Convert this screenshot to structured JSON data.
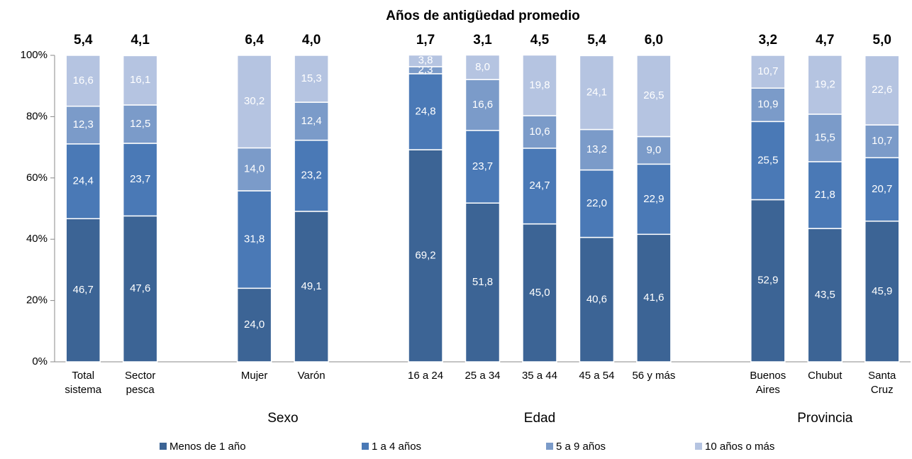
{
  "chart_data": {
    "type": "stacked_bar",
    "title": "Años de antigüedad promedio",
    "categories": [
      "Total sistema",
      "Sector pesca",
      null,
      "Mujer",
      "Varón",
      null,
      "16 a 24",
      "25 a 34",
      "35 a 44",
      "45 a 54",
      "56 y más",
      null,
      "Buenos Aires",
      "Chubut",
      "Santa Cruz"
    ],
    "groups": [
      {
        "name": "Sexo",
        "categories": [
          "Mujer",
          "Varón"
        ]
      },
      {
        "name": "Edad",
        "categories": [
          "16 a 24",
          "25 a 34",
          "35 a 44",
          "45 a 54",
          "56 y más"
        ]
      },
      {
        "name": "Provincia",
        "categories": [
          "Buenos Aires",
          "Chubut",
          "Santa Cruz"
        ]
      }
    ],
    "averages": {
      "values": [
        5.4,
        4.1,
        null,
        6.4,
        4.0,
        null,
        1.7,
        3.1,
        4.5,
        5.4,
        6.0,
        null,
        3.2,
        4.7,
        5.0
      ],
      "value_labels": [
        "5,4",
        "4,1",
        null,
        "6,4",
        "4,0",
        null,
        "1,7",
        "3,1",
        "4,5",
        "5,4",
        "6,0",
        null,
        "3,2",
        "4,7",
        "5,0"
      ]
    },
    "series": [
      {
        "name": "Menos de 1 año",
        "color": "#3c6495",
        "values": [
          46.7,
          47.6,
          null,
          24.0,
          49.1,
          null,
          69.2,
          51.8,
          45.0,
          40.6,
          41.6,
          null,
          52.9,
          43.5,
          45.9
        ],
        "value_labels": [
          "46,7",
          "47,6",
          null,
          "24,0",
          "49,1",
          null,
          "69,2",
          "51,8",
          "45,0",
          "40,6",
          "41,6",
          null,
          "52,9",
          "43,5",
          "45,9"
        ]
      },
      {
        "name": "1 a 4 años",
        "color": "#4a79b6",
        "values": [
          24.4,
          23.7,
          null,
          31.8,
          23.2,
          null,
          24.8,
          23.7,
          24.7,
          22.0,
          22.9,
          null,
          25.5,
          21.8,
          20.7
        ],
        "value_labels": [
          "24,4",
          "23,7",
          null,
          "31,8",
          "23,2",
          null,
          "24,8",
          "23,7",
          "24,7",
          "22,0",
          "22,9",
          null,
          "25,5",
          "21,8",
          "20,7"
        ]
      },
      {
        "name": "5 a 9 años",
        "color": "#7b9bc9",
        "values": [
          12.3,
          12.5,
          null,
          14.0,
          12.4,
          null,
          2.3,
          16.6,
          10.6,
          13.2,
          9.0,
          null,
          10.9,
          15.5,
          10.7
        ],
        "value_labels": [
          "12,3",
          "12,5",
          null,
          "14,0",
          "12,4",
          null,
          "2,3",
          "16,6",
          "10,6",
          "13,2",
          "9,0",
          null,
          "10,9",
          "15,5",
          "10,7"
        ]
      },
      {
        "name": "10 años o más",
        "color": "#b5c4e1",
        "values": [
          16.6,
          16.1,
          null,
          30.2,
          15.3,
          null,
          3.8,
          8.0,
          19.8,
          24.1,
          26.5,
          null,
          10.7,
          19.2,
          22.6
        ],
        "value_labels": [
          "16,6",
          "16,1",
          null,
          "30,2",
          "15,3",
          null,
          "3,8",
          "8,0",
          "19,8",
          "24,1",
          "26,5",
          null,
          "10,7",
          "19,2",
          "22,6"
        ]
      }
    ],
    "ylim": [
      0,
      100
    ],
    "yticks": [
      {
        "value": 0,
        "label": "0%"
      },
      {
        "value": 20,
        "label": "20%"
      },
      {
        "value": 40,
        "label": "40%"
      },
      {
        "value": 60,
        "label": "60%"
      },
      {
        "value": 80,
        "label": "80%"
      },
      {
        "value": 100,
        "label": "100%"
      }
    ],
    "legend": "bottom"
  }
}
